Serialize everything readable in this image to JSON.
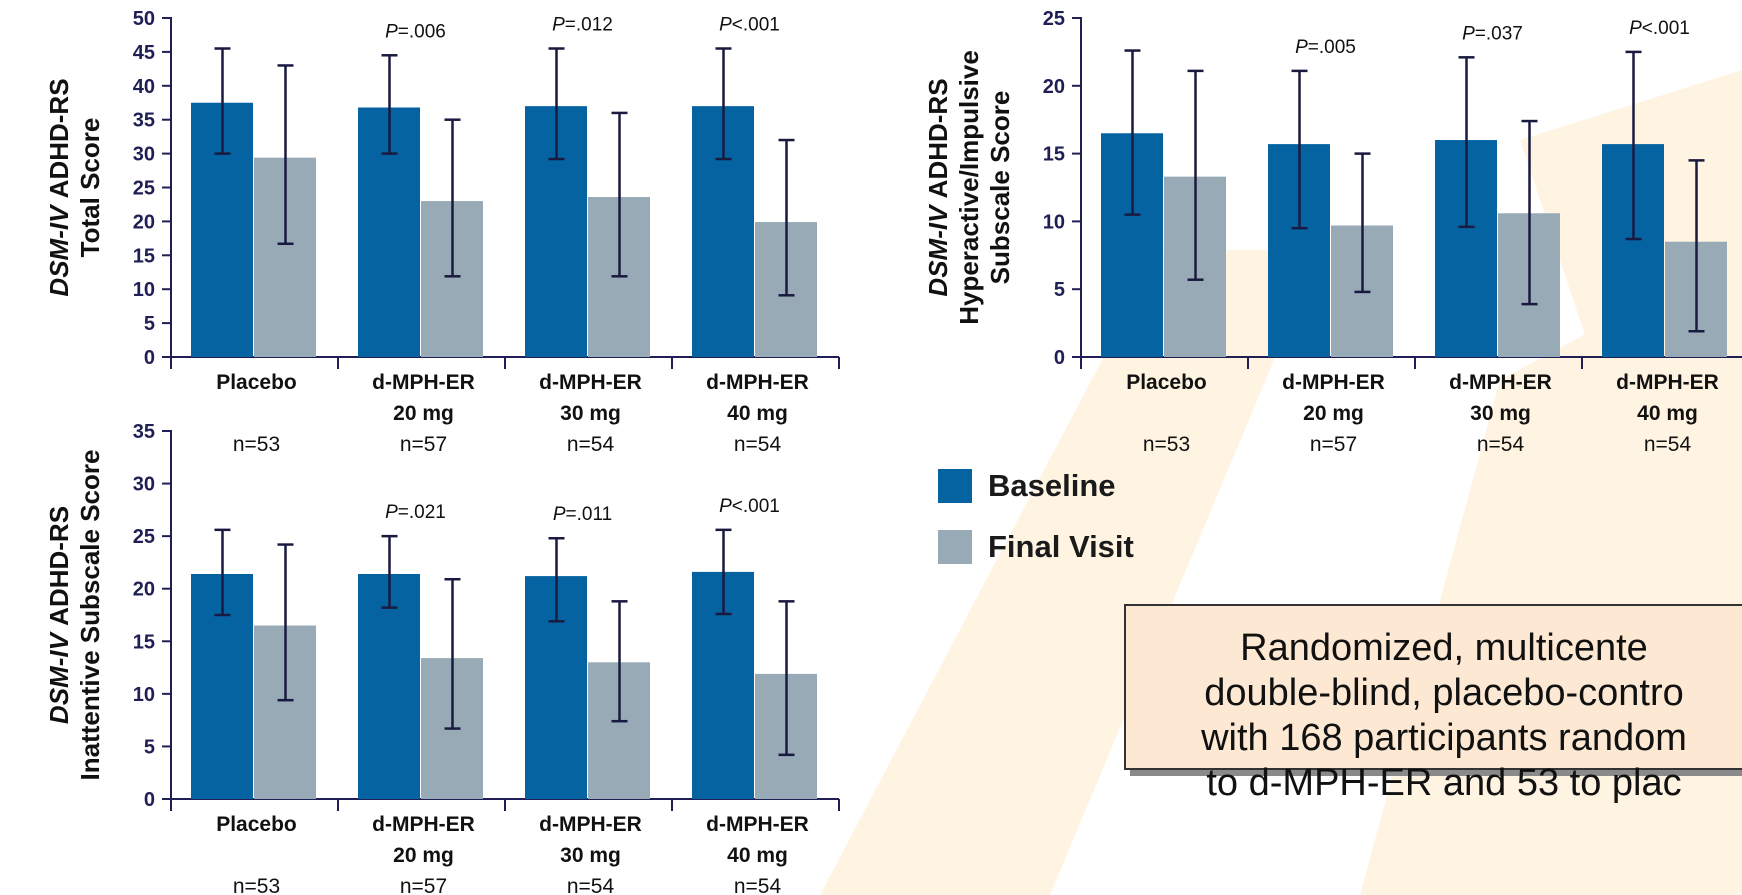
{
  "colors": {
    "baseline": "#0563a2",
    "final_visit": "#97aab5",
    "errorbar": "#1a1a40",
    "axis": "#1f1f55",
    "background_shape": "#fff4e2"
  },
  "legend": {
    "baseline_label": "Baseline",
    "final_visit_label": "Final Visit"
  },
  "note": {
    "lines": [
      "Randomized, multicente",
      "double-blind, placebo-contro",
      "with 168 participants random",
      "to d-MPH-ER and 53 to plac"
    ]
  },
  "chart_data": [
    {
      "type": "bar",
      "ylabel_italic": "DSM-IV",
      "ylabel_lines": [
        "ADHD-RS",
        "Total Score"
      ],
      "ylim": [
        0,
        50
      ],
      "yticks": [
        0,
        5,
        10,
        15,
        20,
        25,
        30,
        35,
        40,
        45,
        50
      ],
      "categories": [
        {
          "lines": [
            "Placebo"
          ],
          "n": "n=53",
          "p_prefix": "",
          "p_value": ""
        },
        {
          "lines": [
            "d-MPH-ER",
            "20 mg"
          ],
          "n": "n=57",
          "p_prefix": "P",
          "p_value": "=.006"
        },
        {
          "lines": [
            "d-MPH-ER",
            "30 mg"
          ],
          "n": "n=54",
          "p_prefix": "P",
          "p_value": "=.012"
        },
        {
          "lines": [
            "d-MPH-ER",
            "40 mg"
          ],
          "n": "n=54",
          "p_prefix": "P",
          "p_value": "<.001"
        }
      ],
      "series": [
        {
          "name": "Baseline",
          "values": [
            37.5,
            36.8,
            37.0,
            37.0
          ],
          "err_low": [
            30.0,
            30.0,
            29.2,
            29.2
          ],
          "err_high": [
            45.5,
            44.5,
            45.5,
            45.5
          ]
        },
        {
          "name": "Final Visit",
          "values": [
            29.4,
            23.0,
            23.6,
            19.9
          ],
          "err_low": [
            16.7,
            11.9,
            11.9,
            9.1
          ],
          "err_high": [
            43.0,
            35.0,
            36.0,
            32.0
          ]
        }
      ]
    },
    {
      "type": "bar",
      "ylabel_italic": "DSM-IV",
      "ylabel_lines": [
        "ADHD-RS",
        "Hyperactive/Impulsive",
        "Subscale Score"
      ],
      "ylim": [
        0,
        25
      ],
      "yticks": [
        0,
        5,
        10,
        15,
        20,
        25
      ],
      "categories": [
        {
          "lines": [
            "Placebo"
          ],
          "n": "n=53",
          "p_prefix": "",
          "p_value": ""
        },
        {
          "lines": [
            "d-MPH-ER",
            "20 mg"
          ],
          "n": "n=57",
          "p_prefix": "P",
          "p_value": "=.005"
        },
        {
          "lines": [
            "d-MPH-ER",
            "30 mg"
          ],
          "n": "n=54",
          "p_prefix": "P",
          "p_value": "=.037"
        },
        {
          "lines": [
            "d-MPH-ER",
            "40 mg"
          ],
          "n": "n=54",
          "p_prefix": "P",
          "p_value": "<.001"
        }
      ],
      "series": [
        {
          "name": "Baseline",
          "values": [
            16.5,
            15.7,
            16.0,
            15.7
          ],
          "err_low": [
            10.5,
            9.5,
            9.6,
            8.7
          ],
          "err_high": [
            22.6,
            21.1,
            22.1,
            22.5
          ]
        },
        {
          "name": "Final Visit",
          "values": [
            13.3,
            9.7,
            10.6,
            8.5
          ],
          "err_low": [
            5.7,
            4.8,
            3.9,
            1.9
          ],
          "err_high": [
            21.1,
            15.0,
            17.4,
            14.5
          ]
        }
      ]
    },
    {
      "type": "bar",
      "ylabel_italic": "DSM-IV",
      "ylabel_lines": [
        "ADHD-RS",
        "Inattentive Subscale Score"
      ],
      "ylim": [
        0,
        35
      ],
      "yticks": [
        0,
        5,
        10,
        15,
        20,
        25,
        30,
        35
      ],
      "categories": [
        {
          "lines": [
            "Placebo"
          ],
          "n": "n=53",
          "p_prefix": "",
          "p_value": ""
        },
        {
          "lines": [
            "d-MPH-ER",
            "20 mg"
          ],
          "n": "n=57",
          "p_prefix": "P",
          "p_value": "=.021"
        },
        {
          "lines": [
            "d-MPH-ER",
            "30 mg"
          ],
          "n": "n=54",
          "p_prefix": "P",
          "p_value": "=.011"
        },
        {
          "lines": [
            "d-MPH-ER",
            "40 mg"
          ],
          "n": "n=54",
          "p_prefix": "P",
          "p_value": "<.001"
        }
      ],
      "series": [
        {
          "name": "Baseline",
          "values": [
            21.4,
            21.4,
            21.2,
            21.6
          ],
          "err_low": [
            17.5,
            18.2,
            16.9,
            17.6
          ],
          "err_high": [
            25.6,
            25.0,
            24.8,
            25.6
          ]
        },
        {
          "name": "Final Visit",
          "values": [
            16.5,
            13.4,
            13.0,
            11.9
          ],
          "err_low": [
            9.4,
            6.7,
            7.4,
            4.2
          ],
          "err_high": [
            24.2,
            20.9,
            18.8,
            18.8
          ]
        }
      ]
    }
  ]
}
